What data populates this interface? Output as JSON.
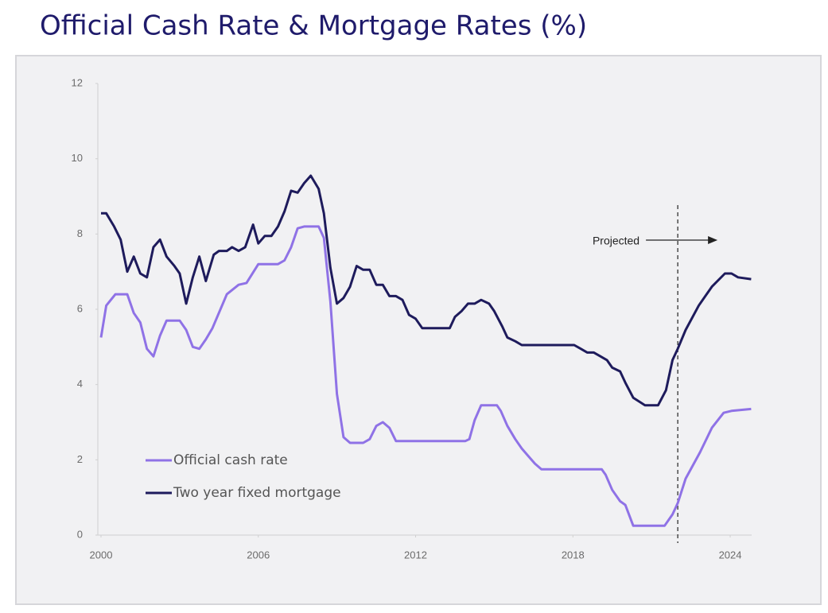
{
  "chart_data": {
    "type": "line",
    "title": "Official Cash Rate & Mortgage Rates (%)",
    "xlim": [
      2000,
      2024.8
    ],
    "xticks": [
      2000,
      2006,
      2012,
      2018,
      2024
    ],
    "ylim": [
      0,
      12
    ],
    "yticks": [
      0,
      2,
      4,
      6,
      8,
      10,
      12
    ],
    "grid": false,
    "legend": "lower left",
    "projection_start": 2022,
    "annotation": "Projected",
    "series": [
      {
        "name": "Official cash rate",
        "color": "#8f72e6",
        "x": [
          2000,
          2000.2,
          2000.55,
          2001.0,
          2001.25,
          2001.5,
          2001.75,
          2002.0,
          2002.25,
          2002.5,
          2003.0,
          2003.25,
          2003.5,
          2003.75,
          2004.0,
          2004.25,
          2004.8,
          2005.25,
          2005.55,
          2006.0,
          2006.75,
          2007.0,
          2007.25,
          2007.5,
          2007.75,
          2008.3,
          2008.5,
          2008.75,
          2009.0,
          2009.25,
          2009.5,
          2010.0,
          2010.25,
          2010.5,
          2010.75,
          2011.0,
          2011.25,
          2013.9,
          2014.05,
          2014.25,
          2014.5,
          2015.1,
          2015.25,
          2015.5,
          2015.8,
          2016.05,
          2016.3,
          2016.55,
          2016.8,
          2017.1,
          2019.1,
          2019.25,
          2019.5,
          2019.8,
          2020.0,
          2020.3,
          2021.5,
          2021.8,
          2022.0,
          2022.3,
          2022.85,
          2023.3,
          2023.75,
          2024.05,
          2024.8
        ],
        "values": [
          5.25,
          6.1,
          6.4,
          6.4,
          5.9,
          5.65,
          4.95,
          4.75,
          5.3,
          5.7,
          5.7,
          5.45,
          5.0,
          4.95,
          5.2,
          5.5,
          6.4,
          6.65,
          6.7,
          7.2,
          7.2,
          7.3,
          7.65,
          8.15,
          8.2,
          8.2,
          7.9,
          6.2,
          3.75,
          2.6,
          2.45,
          2.45,
          2.55,
          2.9,
          3.0,
          2.85,
          2.5,
          2.5,
          2.55,
          3.05,
          3.45,
          3.45,
          3.3,
          2.9,
          2.55,
          2.3,
          2.1,
          1.9,
          1.75,
          1.75,
          1.75,
          1.6,
          1.2,
          0.9,
          0.8,
          0.25,
          0.25,
          0.55,
          0.85,
          1.5,
          2.2,
          2.85,
          3.25,
          3.3,
          3.35
        ]
      },
      {
        "name": "Two year fixed mortgage",
        "color": "#1e1b5c",
        "x": [
          2000,
          2000.2,
          2000.5,
          2000.75,
          2001.0,
          2001.25,
          2001.5,
          2001.75,
          2002.0,
          2002.25,
          2002.5,
          2002.8,
          2003.0,
          2003.25,
          2003.5,
          2003.75,
          2004.0,
          2004.3,
          2004.5,
          2004.8,
          2005.0,
          2005.25,
          2005.5,
          2005.8,
          2006.0,
          2006.25,
          2006.5,
          2006.75,
          2007.0,
          2007.25,
          2007.5,
          2007.75,
          2008.0,
          2008.3,
          2008.5,
          2008.75,
          2009.0,
          2009.25,
          2009.5,
          2009.75,
          2010.0,
          2010.25,
          2010.5,
          2010.75,
          2011.0,
          2011.25,
          2011.5,
          2011.75,
          2012.0,
          2012.25,
          2012.5,
          2013.3,
          2013.5,
          2013.75,
          2014.0,
          2014.25,
          2014.5,
          2014.8,
          2015.0,
          2015.3,
          2015.5,
          2015.8,
          2016.05,
          2018.05,
          2018.3,
          2018.55,
          2018.8,
          2019.05,
          2019.3,
          2019.5,
          2019.8,
          2020.0,
          2020.3,
          2020.75,
          2021.25,
          2021.55,
          2021.8,
          2022.0,
          2022.3,
          2022.8,
          2023.3,
          2023.8,
          2024.05,
          2024.3,
          2024.8
        ],
        "values": [
          8.55,
          8.55,
          8.2,
          7.85,
          7.0,
          7.4,
          6.95,
          6.85,
          7.65,
          7.85,
          7.4,
          7.15,
          6.95,
          6.15,
          6.85,
          7.4,
          6.75,
          7.45,
          7.55,
          7.55,
          7.65,
          7.55,
          7.65,
          8.25,
          7.75,
          7.95,
          7.95,
          8.2,
          8.6,
          9.15,
          9.1,
          9.35,
          9.55,
          9.2,
          8.55,
          7.1,
          6.15,
          6.3,
          6.6,
          7.15,
          7.05,
          7.05,
          6.65,
          6.65,
          6.35,
          6.35,
          6.25,
          5.85,
          5.75,
          5.5,
          5.5,
          5.5,
          5.8,
          5.95,
          6.15,
          6.15,
          6.25,
          6.15,
          5.95,
          5.55,
          5.25,
          5.15,
          5.05,
          5.05,
          4.95,
          4.85,
          4.85,
          4.75,
          4.65,
          4.45,
          4.35,
          4.05,
          3.65,
          3.45,
          3.45,
          3.85,
          4.65,
          4.95,
          5.45,
          6.1,
          6.6,
          6.95,
          6.95,
          6.85,
          6.8
        ]
      }
    ]
  }
}
